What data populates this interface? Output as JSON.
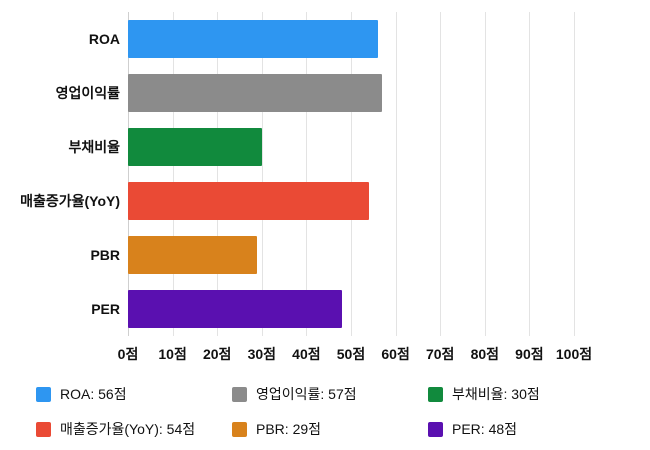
{
  "chart_data": {
    "type": "bar",
    "orientation": "horizontal",
    "title": "",
    "xlabel": "",
    "ylabel": "",
    "unit": "점",
    "xlim": [
      0,
      100
    ],
    "grid": true,
    "legend_position": "bottom",
    "categories": [
      "ROA",
      "영업이익률",
      "부채비율",
      "매출증가율(YoY)",
      "PBR",
      "PER"
    ],
    "values": [
      56,
      57,
      30,
      54,
      29,
      48
    ],
    "colors": [
      "#2e96f1",
      "#8b8b8b",
      "#118a3d",
      "#ea4a35",
      "#d8821c",
      "#5a10b0"
    ],
    "x_ticks": [
      "0점",
      "10점",
      "20점",
      "30점",
      "40점",
      "50점",
      "60점",
      "70점",
      "80점",
      "90점",
      "100점"
    ],
    "legend": [
      {
        "label": "ROA: 56점",
        "color": "#2e96f1"
      },
      {
        "label": "영업이익률: 57점",
        "color": "#8b8b8b"
      },
      {
        "label": "부채비율: 30점",
        "color": "#118a3d"
      },
      {
        "label": "매출증가율(YoY): 54점",
        "color": "#ea4a35"
      },
      {
        "label": "PBR: 29점",
        "color": "#d8821c"
      },
      {
        "label": "PER: 48점",
        "color": "#5a10b0"
      }
    ]
  }
}
